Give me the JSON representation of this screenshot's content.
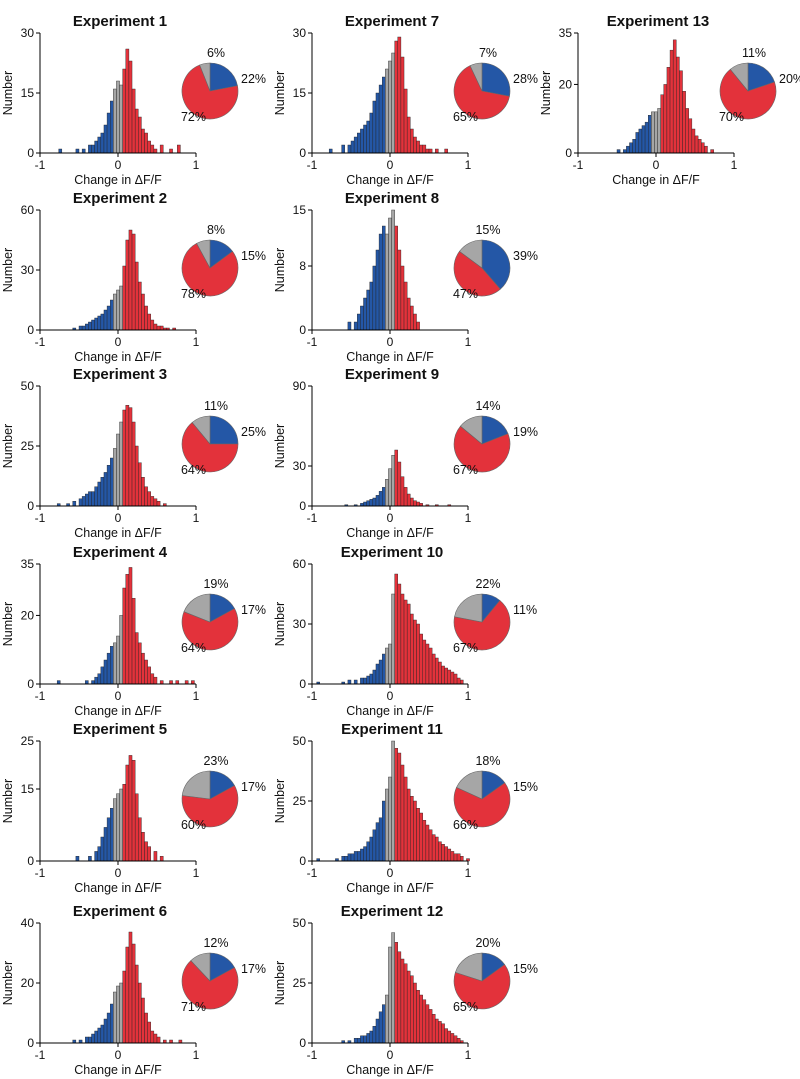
{
  "colors": {
    "increase": "#e3323b",
    "decrease": "#2457a6",
    "unchanged": "#a6a6a6",
    "edge": "#222222"
  },
  "common": {
    "xlabel": "Change in ΔF/F",
    "ylabel": "Number",
    "xlim": [
      -1,
      1
    ],
    "xticks": [
      "-1",
      "0",
      "1"
    ]
  },
  "chart_data": [
    {
      "type": "bar",
      "title": "Experiment 1",
      "ylim": [
        0,
        30
      ],
      "yticks": [
        "0",
        "15",
        "30"
      ],
      "bin_centers": [
        -0.74,
        -0.52,
        -0.44,
        -0.36,
        -0.32,
        -0.28,
        -0.24,
        -0.2,
        -0.16,
        -0.12,
        -0.08,
        -0.04,
        0,
        0.04,
        0.08,
        0.12,
        0.16,
        0.2,
        0.24,
        0.28,
        0.32,
        0.36,
        0.4,
        0.44,
        0.48,
        0.56,
        0.68,
        0.78
      ],
      "counts": [
        1,
        1,
        1,
        2,
        2,
        3,
        4,
        5,
        7,
        10,
        13,
        16,
        18,
        17,
        21,
        26,
        23,
        16,
        11,
        9,
        6,
        5,
        3,
        2,
        1,
        2,
        1,
        2
      ],
      "pie": [
        {
          "label": "22%",
          "value": 22,
          "category": "decrease"
        },
        {
          "label": "72%",
          "value": 72,
          "category": "increase"
        },
        {
          "label": "6%",
          "value": 6,
          "category": "unchanged"
        }
      ]
    },
    {
      "type": "bar",
      "title": "Experiment 2",
      "ylim": [
        0,
        60
      ],
      "yticks": [
        "0",
        "30",
        "60"
      ],
      "bin_centers": [
        -0.56,
        -0.48,
        -0.44,
        -0.4,
        -0.36,
        -0.32,
        -0.28,
        -0.24,
        -0.2,
        -0.16,
        -0.12,
        -0.08,
        -0.04,
        0,
        0.04,
        0.08,
        0.12,
        0.16,
        0.2,
        0.24,
        0.28,
        0.32,
        0.36,
        0.4,
        0.44,
        0.48,
        0.52,
        0.56,
        0.6,
        0.64,
        0.72
      ],
      "counts": [
        1,
        2,
        2,
        3,
        4,
        5,
        6,
        7,
        8,
        10,
        12,
        15,
        18,
        20,
        22,
        32,
        45,
        50,
        48,
        34,
        24,
        18,
        12,
        8,
        5,
        3,
        2,
        2,
        1,
        1,
        1
      ],
      "pie": [
        {
          "label": "15%",
          "value": 15,
          "category": "decrease"
        },
        {
          "label": "78%",
          "value": 78,
          "category": "increase"
        },
        {
          "label": "8%",
          "value": 8,
          "category": "unchanged"
        }
      ]
    },
    {
      "type": "bar",
      "title": "Experiment 3",
      "ylim": [
        0,
        50
      ],
      "yticks": [
        "0",
        "25",
        "50"
      ],
      "bin_centers": [
        -0.76,
        -0.64,
        -0.56,
        -0.48,
        -0.44,
        -0.4,
        -0.36,
        -0.32,
        -0.28,
        -0.24,
        -0.2,
        -0.16,
        -0.12,
        -0.08,
        -0.04,
        0,
        0.04,
        0.08,
        0.12,
        0.16,
        0.2,
        0.24,
        0.28,
        0.32,
        0.36,
        0.4,
        0.44,
        0.48,
        0.52,
        0.6
      ],
      "counts": [
        1,
        1,
        2,
        3,
        4,
        5,
        6,
        6,
        8,
        10,
        12,
        14,
        17,
        20,
        24,
        30,
        35,
        40,
        42,
        41,
        35,
        25,
        18,
        12,
        8,
        6,
        4,
        3,
        2,
        1
      ],
      "pie": [
        {
          "label": "25%",
          "value": 25,
          "category": "decrease"
        },
        {
          "label": "64%",
          "value": 64,
          "category": "increase"
        },
        {
          "label": "11%",
          "value": 11,
          "category": "unchanged"
        }
      ]
    },
    {
      "type": "bar",
      "title": "Experiment 4",
      "ylim": [
        0,
        35
      ],
      "yticks": [
        "0",
        "20",
        "35"
      ],
      "bin_centers": [
        -0.76,
        -0.4,
        -0.32,
        -0.28,
        -0.24,
        -0.2,
        -0.16,
        -0.12,
        -0.08,
        -0.04,
        0,
        0.04,
        0.08,
        0.12,
        0.16,
        0.2,
        0.24,
        0.28,
        0.32,
        0.36,
        0.4,
        0.44,
        0.48,
        0.56,
        0.68,
        0.76,
        0.88,
        0.96
      ],
      "counts": [
        1,
        1,
        1,
        2,
        3,
        5,
        7,
        9,
        11,
        12,
        14,
        20,
        28,
        32,
        34,
        25,
        15,
        12,
        9,
        7,
        5,
        3,
        2,
        1,
        1,
        1,
        1,
        1
      ],
      "pie": [
        {
          "label": "17%",
          "value": 17,
          "category": "decrease"
        },
        {
          "label": "64%",
          "value": 64,
          "category": "increase"
        },
        {
          "label": "19%",
          "value": 19,
          "category": "unchanged"
        }
      ]
    },
    {
      "type": "bar",
      "title": "Experiment 5",
      "ylim": [
        0,
        25
      ],
      "yticks": [
        "0",
        "15",
        "25"
      ],
      "bin_centers": [
        -0.52,
        -0.36,
        -0.28,
        -0.24,
        -0.2,
        -0.16,
        -0.12,
        -0.08,
        -0.04,
        0,
        0.04,
        0.08,
        0.12,
        0.16,
        0.2,
        0.24,
        0.28,
        0.32,
        0.36,
        0.4,
        0.48,
        0.56
      ],
      "counts": [
        1,
        1,
        2,
        3,
        5,
        7,
        9,
        11,
        13,
        14,
        15,
        16,
        20,
        22,
        21,
        14,
        9,
        6,
        4,
        3,
        2,
        1
      ],
      "pie": [
        {
          "label": "17%",
          "value": 17,
          "category": "decrease"
        },
        {
          "label": "60%",
          "value": 60,
          "category": "increase"
        },
        {
          "label": "23%",
          "value": 23,
          "category": "unchanged"
        }
      ]
    },
    {
      "type": "bar",
      "title": "Experiment 6",
      "ylim": [
        0,
        40
      ],
      "yticks": [
        "0",
        "20",
        "40"
      ],
      "bin_centers": [
        -0.56,
        -0.48,
        -0.4,
        -0.36,
        -0.32,
        -0.28,
        -0.24,
        -0.2,
        -0.16,
        -0.12,
        -0.08,
        -0.04,
        0,
        0.04,
        0.08,
        0.12,
        0.16,
        0.2,
        0.24,
        0.28,
        0.32,
        0.36,
        0.4,
        0.44,
        0.48,
        0.52,
        0.6,
        0.68,
        0.8
      ],
      "counts": [
        1,
        1,
        2,
        2,
        3,
        4,
        5,
        6,
        8,
        10,
        13,
        17,
        19,
        20,
        24,
        32,
        37,
        33,
        26,
        20,
        15,
        10,
        7,
        4,
        3,
        2,
        1,
        1,
        1
      ],
      "pie": [
        {
          "label": "17%",
          "value": 17,
          "category": "decrease"
        },
        {
          "label": "71%",
          "value": 71,
          "category": "increase"
        },
        {
          "label": "12%",
          "value": 12,
          "category": "unchanged"
        }
      ]
    },
    {
      "type": "bar",
      "title": "Experiment 7",
      "ylim": [
        0,
        30
      ],
      "yticks": [
        "0",
        "15",
        "30"
      ],
      "bin_centers": [
        -0.76,
        -0.6,
        -0.52,
        -0.48,
        -0.44,
        -0.4,
        -0.36,
        -0.32,
        -0.28,
        -0.24,
        -0.2,
        -0.16,
        -0.12,
        -0.08,
        -0.04,
        0,
        0.04,
        0.08,
        0.12,
        0.16,
        0.2,
        0.24,
        0.28,
        0.32,
        0.36,
        0.4,
        0.44,
        0.48,
        0.52,
        0.6,
        0.72
      ],
      "counts": [
        1,
        2,
        2,
        3,
        4,
        5,
        6,
        7,
        8,
        10,
        13,
        15,
        17,
        19,
        21,
        23,
        25,
        28,
        29,
        24,
        16,
        9,
        6,
        4,
        3,
        2,
        2,
        1,
        1,
        1,
        1
      ],
      "pie": [
        {
          "label": "28%",
          "value": 28,
          "category": "decrease"
        },
        {
          "label": "65%",
          "value": 65,
          "category": "increase"
        },
        {
          "label": "7%",
          "value": 7,
          "category": "unchanged"
        }
      ]
    },
    {
      "type": "bar",
      "title": "Experiment 8",
      "ylim": [
        0,
        15
      ],
      "yticks": [
        "0",
        "8",
        "15"
      ],
      "bin_centers": [
        -0.52,
        -0.44,
        -0.4,
        -0.36,
        -0.32,
        -0.28,
        -0.24,
        -0.2,
        -0.16,
        -0.12,
        -0.08,
        -0.04,
        0,
        0.04,
        0.08,
        0.12,
        0.16,
        0.2,
        0.24,
        0.28,
        0.32,
        0.36
      ],
      "counts": [
        1,
        1,
        2,
        3,
        4,
        5,
        6,
        8,
        10,
        12,
        13,
        12,
        14,
        15,
        13,
        10,
        8,
        6,
        4,
        3,
        2,
        1
      ],
      "pie": [
        {
          "label": "39%",
          "value": 39,
          "category": "decrease"
        },
        {
          "label": "47%",
          "value": 47,
          "category": "increase"
        },
        {
          "label": "15%",
          "value": 15,
          "category": "unchanged"
        }
      ]
    },
    {
      "type": "bar",
      "title": "Experiment 9",
      "ylim": [
        0,
        90
      ],
      "yticks": [
        "0",
        "30",
        "90"
      ],
      "bin_centers": [
        -0.56,
        -0.44,
        -0.36,
        -0.32,
        -0.28,
        -0.24,
        -0.2,
        -0.16,
        -0.12,
        -0.08,
        -0.04,
        0,
        0.04,
        0.08,
        0.12,
        0.16,
        0.2,
        0.24,
        0.28,
        0.32,
        0.36,
        0.4,
        0.48,
        0.6,
        0.76
      ],
      "counts": [
        1,
        1,
        2,
        3,
        4,
        5,
        6,
        8,
        11,
        14,
        20,
        28,
        38,
        42,
        33,
        22,
        14,
        9,
        6,
        4,
        3,
        2,
        1,
        1,
        1
      ],
      "pie": [
        {
          "label": "19%",
          "value": 19,
          "category": "decrease"
        },
        {
          "label": "67%",
          "value": 67,
          "category": "increase"
        },
        {
          "label": "14%",
          "value": 14,
          "category": "unchanged"
        }
      ]
    },
    {
      "type": "bar",
      "title": "Experiment 10",
      "ylim": [
        0,
        60
      ],
      "yticks": [
        "0",
        "30",
        "60"
      ],
      "bin_centers": [
        -0.92,
        -0.6,
        -0.52,
        -0.44,
        -0.36,
        -0.32,
        -0.28,
        -0.24,
        -0.2,
        -0.16,
        -0.12,
        -0.08,
        -0.04,
        0,
        0.04,
        0.08,
        0.12,
        0.16,
        0.2,
        0.24,
        0.28,
        0.32,
        0.36,
        0.4,
        0.44,
        0.48,
        0.52,
        0.56,
        0.6,
        0.64,
        0.68,
        0.72,
        0.76,
        0.8,
        0.84,
        0.88,
        0.92
      ],
      "counts": [
        1,
        1,
        2,
        2,
        3,
        3,
        4,
        5,
        7,
        10,
        12,
        15,
        18,
        20,
        45,
        55,
        50,
        45,
        42,
        40,
        35,
        32,
        30,
        25,
        22,
        20,
        18,
        15,
        13,
        11,
        9,
        8,
        7,
        6,
        5,
        3,
        2
      ],
      "pie": [
        {
          "label": "11%",
          "value": 11,
          "category": "decrease"
        },
        {
          "label": "67%",
          "value": 67,
          "category": "increase"
        },
        {
          "label": "22%",
          "value": 22,
          "category": "unchanged"
        }
      ]
    },
    {
      "type": "bar",
      "title": "Experiment 11",
      "ylim": [
        0,
        50
      ],
      "yticks": [
        "0",
        "25",
        "50"
      ],
      "bin_centers": [
        -0.92,
        -0.68,
        -0.6,
        -0.56,
        -0.52,
        -0.48,
        -0.44,
        -0.4,
        -0.36,
        -0.32,
        -0.28,
        -0.24,
        -0.2,
        -0.16,
        -0.12,
        -0.08,
        -0.04,
        0,
        0.04,
        0.08,
        0.12,
        0.16,
        0.2,
        0.24,
        0.28,
        0.32,
        0.36,
        0.4,
        0.44,
        0.48,
        0.52,
        0.56,
        0.6,
        0.64,
        0.68,
        0.72,
        0.76,
        0.8,
        0.84,
        0.88,
        0.92,
        1.0
      ],
      "counts": [
        1,
        1,
        2,
        2,
        3,
        3,
        4,
        4,
        5,
        6,
        8,
        10,
        13,
        16,
        18,
        25,
        30,
        35,
        50,
        47,
        45,
        40,
        35,
        30,
        27,
        25,
        22,
        20,
        17,
        15,
        13,
        11,
        10,
        8,
        7,
        6,
        5,
        4,
        3,
        3,
        2,
        1
      ],
      "pie": [
        {
          "label": "15%",
          "value": 15,
          "category": "decrease"
        },
        {
          "label": "66%",
          "value": 66,
          "category": "increase"
        },
        {
          "label": "18%",
          "value": 18,
          "category": "unchanged"
        }
      ]
    },
    {
      "type": "bar",
      "title": "Experiment 12",
      "ylim": [
        0,
        50
      ],
      "yticks": [
        "0",
        "25",
        "50"
      ],
      "bin_centers": [
        -0.6,
        -0.52,
        -0.44,
        -0.4,
        -0.36,
        -0.32,
        -0.28,
        -0.24,
        -0.2,
        -0.16,
        -0.12,
        -0.08,
        -0.04,
        0,
        0.04,
        0.08,
        0.12,
        0.16,
        0.2,
        0.24,
        0.28,
        0.32,
        0.36,
        0.4,
        0.44,
        0.48,
        0.52,
        0.56,
        0.6,
        0.64,
        0.68,
        0.72,
        0.76,
        0.8,
        0.84,
        0.88,
        0.92
      ],
      "counts": [
        1,
        1,
        2,
        2,
        3,
        3,
        4,
        5,
        7,
        10,
        13,
        16,
        20,
        40,
        46,
        42,
        38,
        35,
        33,
        30,
        28,
        25,
        22,
        20,
        18,
        16,
        14,
        12,
        10,
        9,
        8,
        6,
        5,
        4,
        3,
        2,
        1
      ],
      "pie": [
        {
          "label": "15%",
          "value": 15,
          "category": "decrease"
        },
        {
          "label": "65%",
          "value": 65,
          "category": "increase"
        },
        {
          "label": "20%",
          "value": 20,
          "category": "unchanged"
        }
      ]
    },
    {
      "type": "bar",
      "title": "Experiment 13",
      "ylim": [
        0,
        35
      ],
      "yticks": [
        "0",
        "20",
        "35"
      ],
      "bin_centers": [
        -0.48,
        -0.4,
        -0.36,
        -0.32,
        -0.28,
        -0.24,
        -0.2,
        -0.16,
        -0.12,
        -0.08,
        -0.04,
        0,
        0.04,
        0.08,
        0.12,
        0.16,
        0.2,
        0.24,
        0.28,
        0.32,
        0.36,
        0.4,
        0.44,
        0.48,
        0.52,
        0.56,
        0.6,
        0.64,
        0.72
      ],
      "counts": [
        1,
        1,
        2,
        3,
        4,
        6,
        7,
        8,
        9,
        11,
        12,
        12,
        13,
        17,
        20,
        25,
        30,
        33,
        28,
        24,
        18,
        13,
        10,
        7,
        5,
        4,
        3,
        2,
        1
      ],
      "pie": [
        {
          "label": "20%",
          "value": 20,
          "category": "decrease"
        },
        {
          "label": "70%",
          "value": 70,
          "category": "increase"
        },
        {
          "label": "11%",
          "value": 11,
          "category": "unchanged"
        }
      ]
    }
  ]
}
